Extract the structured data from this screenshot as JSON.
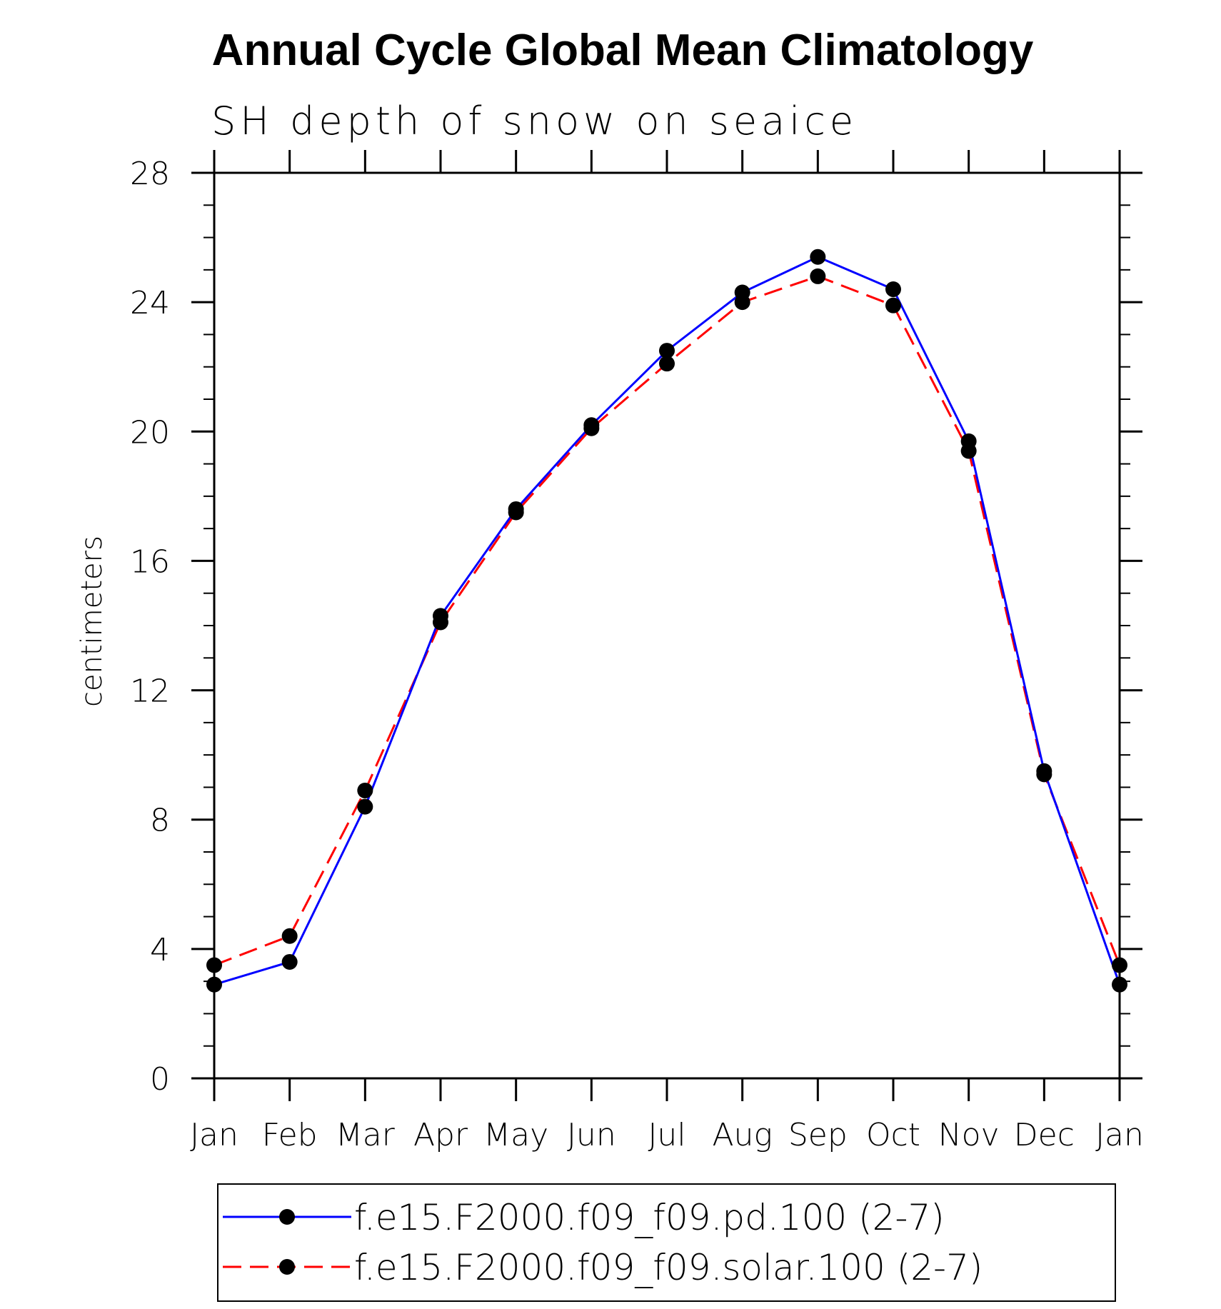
{
  "chart_data": {
    "type": "line",
    "title": "Annual Cycle Global Mean Climatology",
    "subtitle": "SH depth of snow on seaice",
    "xlabel": "",
    "ylabel": "centimeters",
    "categories": [
      "Jan",
      "Feb",
      "Mar",
      "Apr",
      "May",
      "Jun",
      "Jul",
      "Aug",
      "Sep",
      "Oct",
      "Nov",
      "Dec",
      "Jan"
    ],
    "ylim": [
      0,
      28
    ],
    "yticks": [
      0,
      4,
      8,
      12,
      16,
      20,
      24,
      28
    ],
    "yminor_step": 1,
    "grid": false,
    "legend_position": "bottom",
    "series": [
      {
        "name": "f.e15.F2000.f09_f09.pd.100 (2-7)",
        "color": "#0000ff",
        "line_style": "solid",
        "marker": "filled-circle",
        "values": [
          2.9,
          3.6,
          8.4,
          14.3,
          17.6,
          20.2,
          22.5,
          24.3,
          25.4,
          24.4,
          19.7,
          9.5,
          2.9
        ]
      },
      {
        "name": "f.e15.F2000.f09_f09.solar.100 (2-7)",
        "color": "#ff0000",
        "line_style": "dashed",
        "marker": "filled-circle",
        "values": [
          3.5,
          4.4,
          8.9,
          14.1,
          17.5,
          20.1,
          22.1,
          24.0,
          24.8,
          23.9,
          19.4,
          9.4,
          3.5
        ]
      }
    ]
  }
}
